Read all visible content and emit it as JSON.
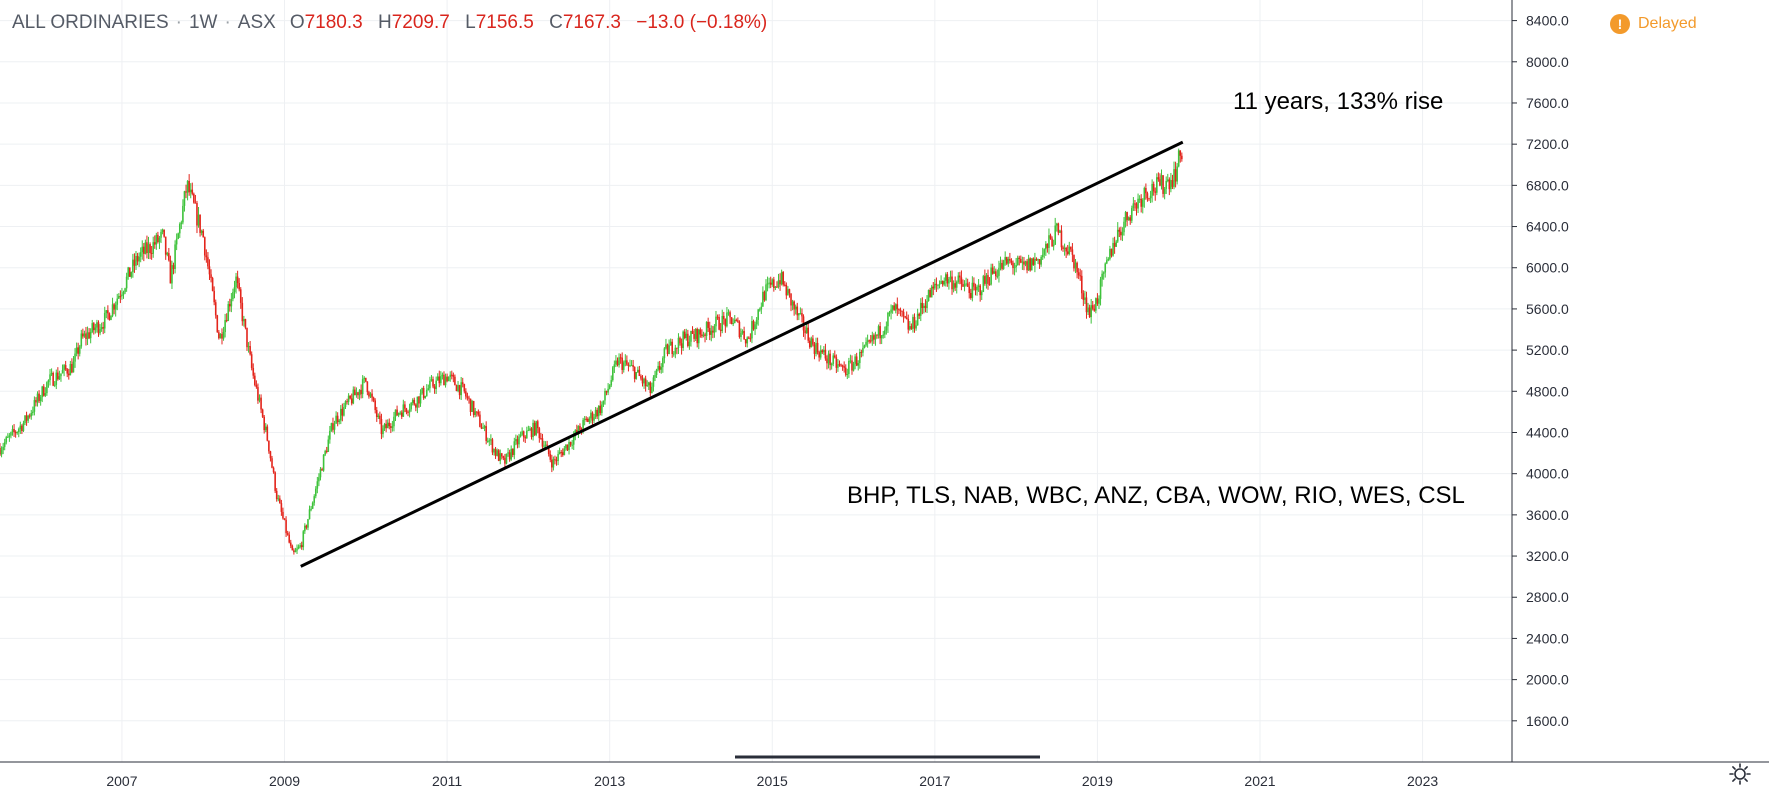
{
  "header": {
    "symbol": "ALL ORDINARIES",
    "interval": "1W",
    "exchange": "ASX",
    "open_label": "O",
    "open": "7180.3",
    "high_label": "H",
    "high": "7209.7",
    "low_label": "L",
    "low": "7156.5",
    "close_label": "C",
    "close": "7167.3",
    "change": "−13.0 (−0.18%)"
  },
  "status": {
    "delayed_label": "Delayed",
    "delayed_icon": "exclamation-icon"
  },
  "annotations": {
    "rise_text": "11 years, 133% rise",
    "stocks_text": "BHP, TLS, NAB, WBC, ANZ, CBA, WOW, RIO, WES, CSL"
  },
  "colors": {
    "up": "#3ec23b",
    "down": "#e3241b",
    "trendline": "#000000",
    "delayed": "#f39a2b",
    "ohlc_text": "#d9251d"
  },
  "chart_data": {
    "type": "candlestick",
    "title": "ALL ORDINARIES · 1W · ASX",
    "xlim": [
      2005.5,
      2024.1
    ],
    "ylim": [
      1200,
      8600
    ],
    "y_ticks": [
      1600,
      2000,
      2400,
      2800,
      3200,
      3600,
      4000,
      4400,
      4800,
      5200,
      5600,
      6000,
      6400,
      6800,
      7200,
      7600,
      8000,
      8400
    ],
    "y_tick_labels": [
      "1600.0",
      "2000.0",
      "2400.0",
      "2800.0",
      "3200.0",
      "3600.0",
      "4000.0",
      "4400.0",
      "4800.0",
      "5200.0",
      "5600.0",
      "6000.0",
      "6400.0",
      "6800.0",
      "7200.0",
      "7600.0",
      "8000.0",
      "8400.0"
    ],
    "x_ticks": [
      2007,
      2009,
      2011,
      2013,
      2015,
      2017,
      2019,
      2021,
      2023
    ],
    "x_tick_labels": [
      "2007",
      "2009",
      "2011",
      "2013",
      "2015",
      "2017",
      "2019",
      "2021",
      "2023"
    ],
    "grid": true,
    "price_path": {
      "x": [
        2005.5,
        2005.8,
        2006.1,
        2006.4,
        2006.5,
        2006.8,
        2007.0,
        2007.2,
        2007.5,
        2007.6,
        2007.8,
        2008.0,
        2008.2,
        2008.4,
        2008.6,
        2008.8,
        2008.9,
        2009.0,
        2009.1,
        2009.2,
        2009.4,
        2009.6,
        2009.8,
        2010.0,
        2010.2,
        2010.4,
        2010.6,
        2010.8,
        2011.0,
        2011.2,
        2011.4,
        2011.6,
        2011.7,
        2011.9,
        2012.1,
        2012.3,
        2012.5,
        2012.7,
        2012.9,
        2013.1,
        2013.3,
        2013.5,
        2013.7,
        2013.9,
        2014.1,
        2014.3,
        2014.5,
        2014.7,
        2014.9,
        2015.1,
        2015.3,
        2015.5,
        2015.7,
        2015.9,
        2016.1,
        2016.3,
        2016.5,
        2016.7,
        2016.9,
        2017.1,
        2017.3,
        2017.5,
        2017.7,
        2017.9,
        2018.1,
        2018.3,
        2018.5,
        2018.7,
        2018.9,
        2019.0,
        2019.2,
        2019.4,
        2019.6,
        2019.8,
        2019.95,
        2020.05
      ],
      "close": [
        4250,
        4500,
        4900,
        5050,
        5300,
        5500,
        5800,
        6100,
        6300,
        5900,
        6800,
        6300,
        5300,
        5900,
        5000,
        4300,
        3800,
        3500,
        3200,
        3300,
        3900,
        4500,
        4700,
        4900,
        4400,
        4600,
        4700,
        4850,
        4950,
        4800,
        4500,
        4200,
        4100,
        4350,
        4450,
        4100,
        4300,
        4500,
        4650,
        5100,
        5000,
        4800,
        5200,
        5300,
        5350,
        5450,
        5500,
        5300,
        5750,
        5900,
        5550,
        5250,
        5100,
        5000,
        5150,
        5350,
        5600,
        5400,
        5700,
        5900,
        5850,
        5750,
        5950,
        6050,
        6000,
        6100,
        6350,
        6100,
        5550,
        5700,
        6250,
        6550,
        6750,
        6800,
        6900,
        7170
      ]
    },
    "trendline": {
      "from": {
        "x": 2009.2,
        "y": 3100
      },
      "to": {
        "x": 2020.05,
        "y": 7220
      }
    }
  }
}
